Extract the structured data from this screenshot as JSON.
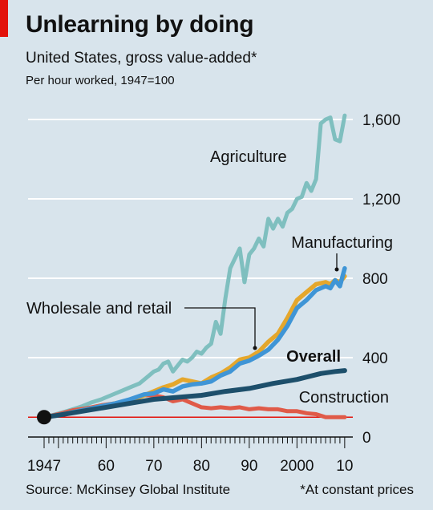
{
  "header": {
    "title": "Unlearning by doing",
    "subtitle": "United States, gross value-added*",
    "unit_note": "Per hour worked, 1947=100"
  },
  "footer": {
    "source": "Source: McKinsey Global Institute",
    "note": "*At constant prices"
  },
  "colors": {
    "accent": "#e3120b",
    "background": "#d8e4ec",
    "agriculture": "#7fbfbf",
    "manufacturing": "#3f95d6",
    "wholesale_retail": "#e5a72c",
    "overall": "#1d4f6b",
    "construction": "#e05a48",
    "baseline": "#e3120b"
  },
  "chart_data": {
    "type": "line",
    "xlim": [
      1945,
      2012
    ],
    "ylim": [
      0,
      1700
    ],
    "y_ticks": [
      0,
      400,
      800,
      1200,
      1600
    ],
    "y_tick_labels": [
      "0",
      "400",
      "800",
      "1,200",
      "1,600"
    ],
    "x_tick_labels": [
      {
        "year": 1947,
        "label": "1947"
      },
      {
        "year": 1960,
        "label": "60"
      },
      {
        "year": 1970,
        "label": "70"
      },
      {
        "year": 1980,
        "label": "80"
      },
      {
        "year": 1990,
        "label": "90"
      },
      {
        "year": 2000,
        "label": "2000"
      },
      {
        "year": 2010,
        "label": "10"
      }
    ],
    "grid": true,
    "baseline_value": 100,
    "series": [
      {
        "key": "agriculture",
        "name": "Agriculture",
        "x": [
          1947,
          1949,
          1951,
          1953,
          1955,
          1957,
          1959,
          1961,
          1963,
          1965,
          1967,
          1969,
          1970,
          1971,
          1972,
          1973,
          1974,
          1975,
          1976,
          1977,
          1978,
          1979,
          1980,
          1981,
          1982,
          1983,
          1984,
          1985,
          1986,
          1987,
          1988,
          1989,
          1990,
          1991,
          1992,
          1993,
          1994,
          1995,
          1996,
          1997,
          1998,
          1999,
          2000,
          2001,
          2002,
          2003,
          2004,
          2005,
          2006,
          2007,
          2008,
          2009,
          2010
        ],
        "y": [
          100,
          112,
          125,
          140,
          155,
          175,
          190,
          210,
          230,
          250,
          270,
          310,
          330,
          340,
          370,
          380,
          330,
          360,
          390,
          380,
          400,
          430,
          420,
          450,
          470,
          580,
          520,
          700,
          850,
          900,
          950,
          780,
          920,
          950,
          1000,
          960,
          1100,
          1050,
          1100,
          1060,
          1130,
          1150,
          1200,
          1210,
          1280,
          1240,
          1300,
          1580,
          1600,
          1610,
          1500,
          1490,
          1620
        ]
      },
      {
        "key": "manufacturing",
        "name": "Manufacturing",
        "x": [
          1947,
          1950,
          1953,
          1956,
          1959,
          1962,
          1965,
          1968,
          1970,
          1972,
          1974,
          1976,
          1978,
          1980,
          1982,
          1984,
          1986,
          1988,
          1990,
          1992,
          1994,
          1996,
          1998,
          2000,
          2002,
          2004,
          2006,
          2007,
          2008,
          2009,
          2010
        ],
        "y": [
          100,
          110,
          125,
          140,
          155,
          170,
          190,
          215,
          220,
          240,
          230,
          255,
          265,
          270,
          280,
          310,
          330,
          370,
          385,
          410,
          440,
          490,
          560,
          650,
          690,
          740,
          760,
          750,
          790,
          760,
          850
        ]
      },
      {
        "key": "wholesale_retail",
        "name": "Wholesale and retail",
        "x": [
          1947,
          1950,
          1953,
          1956,
          1959,
          1962,
          1965,
          1968,
          1970,
          1972,
          1974,
          1976,
          1978,
          1980,
          1982,
          1984,
          1986,
          1988,
          1990,
          1992,
          1994,
          1996,
          1998,
          2000,
          2002,
          2004,
          2006,
          2007,
          2008,
          2009,
          2010
        ],
        "y": [
          100,
          110,
          125,
          140,
          155,
          170,
          185,
          210,
          230,
          250,
          265,
          290,
          280,
          270,
          300,
          320,
          350,
          390,
          400,
          430,
          480,
          520,
          600,
          690,
          730,
          770,
          780,
          770,
          790,
          780,
          810
        ]
      },
      {
        "key": "overall",
        "name": "Overall",
        "x": [
          1947,
          1950,
          1955,
          1960,
          1965,
          1970,
          1975,
          1980,
          1985,
          1990,
          1995,
          2000,
          2005,
          2008,
          2010
        ],
        "y": [
          100,
          110,
          130,
          150,
          170,
          190,
          200,
          210,
          230,
          245,
          270,
          290,
          320,
          330,
          335
        ]
      },
      {
        "key": "construction",
        "name": "Construction",
        "x": [
          1947,
          1950,
          1953,
          1956,
          1959,
          1962,
          1965,
          1968,
          1970,
          1972,
          1974,
          1976,
          1978,
          1980,
          1982,
          1984,
          1986,
          1988,
          1990,
          1992,
          1994,
          1996,
          1998,
          2000,
          2002,
          2004,
          2006,
          2008,
          2010
        ],
        "y": [
          100,
          115,
          135,
          145,
          160,
          170,
          185,
          210,
          210,
          200,
          180,
          190,
          170,
          150,
          145,
          150,
          145,
          150,
          140,
          145,
          140,
          140,
          130,
          130,
          120,
          115,
          100,
          100,
          100
        ]
      }
    ],
    "labels": [
      {
        "key": "agriculture",
        "text": "Agriculture",
        "bold": false
      },
      {
        "key": "manufacturing",
        "text": "Manufacturing",
        "bold": false
      },
      {
        "key": "wholesale_retail",
        "text": "Wholesale and retail",
        "bold": false
      },
      {
        "key": "overall",
        "text": "Overall",
        "bold": true
      },
      {
        "key": "construction",
        "text": "Construction",
        "bold": false
      }
    ]
  }
}
